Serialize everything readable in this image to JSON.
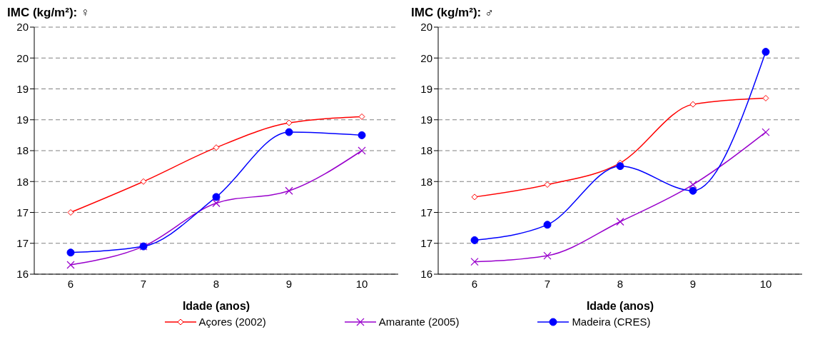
{
  "chart_data": [
    {
      "type": "line",
      "title": "IMC (kg/m²): ♀",
      "xlabel": "Idade (anos)",
      "categories": [
        "6",
        "7",
        "8",
        "9",
        "10"
      ],
      "series": [
        {
          "name": "Açores (2002)",
          "color": "#ff0000",
          "marker": "diamond",
          "values": [
            17.0,
            17.5,
            18.05,
            18.45,
            18.55
          ]
        },
        {
          "name": "Amarante (2005)",
          "color": "#9900cc",
          "marker": "cross",
          "values": [
            16.15,
            16.45,
            17.15,
            17.35,
            18.0
          ]
        },
        {
          "name": "Madeira (CRES)",
          "color": "#0000ff",
          "marker": "circle",
          "values": [
            16.35,
            16.45,
            17.25,
            18.3,
            18.25
          ]
        }
      ],
      "ylim": [
        16,
        20
      ],
      "yticks": [
        16,
        {
          "value": 16.5,
          "label": "17"
        },
        17,
        {
          "value": 17.5,
          "label": "18"
        },
        18,
        {
          "value": 18.5,
          "label": "19"
        },
        19,
        {
          "value": 19.5,
          "label": "20"
        },
        20
      ],
      "grid": "y",
      "legend": "bottom"
    },
    {
      "type": "line",
      "title": "IMC (kg/m²): ♂",
      "xlabel": "Idade (anos)",
      "categories": [
        "6",
        "7",
        "8",
        "9",
        "10"
      ],
      "series": [
        {
          "color": "#ff0000",
          "marker": "diamond",
          "values": [
            17.25,
            17.45,
            17.8,
            18.75,
            18.85
          ]
        },
        {
          "color": "#9900cc",
          "marker": "cross",
          "values": [
            16.2,
            16.3,
            16.85,
            17.45,
            18.3
          ]
        },
        {
          "color": "#0000ff",
          "marker": "circle",
          "values": [
            16.55,
            16.8,
            17.75,
            17.35,
            19.6
          ]
        }
      ],
      "ylim": [
        16,
        20
      ],
      "yticks": [
        16,
        {
          "value": 16.5,
          "label": "17"
        },
        17,
        {
          "value": 17.5,
          "label": "18"
        },
        18,
        {
          "value": 18.5,
          "label": "19"
        },
        19,
        {
          "value": 19.5,
          "label": "20"
        },
        20
      ],
      "grid": "y"
    }
  ]
}
